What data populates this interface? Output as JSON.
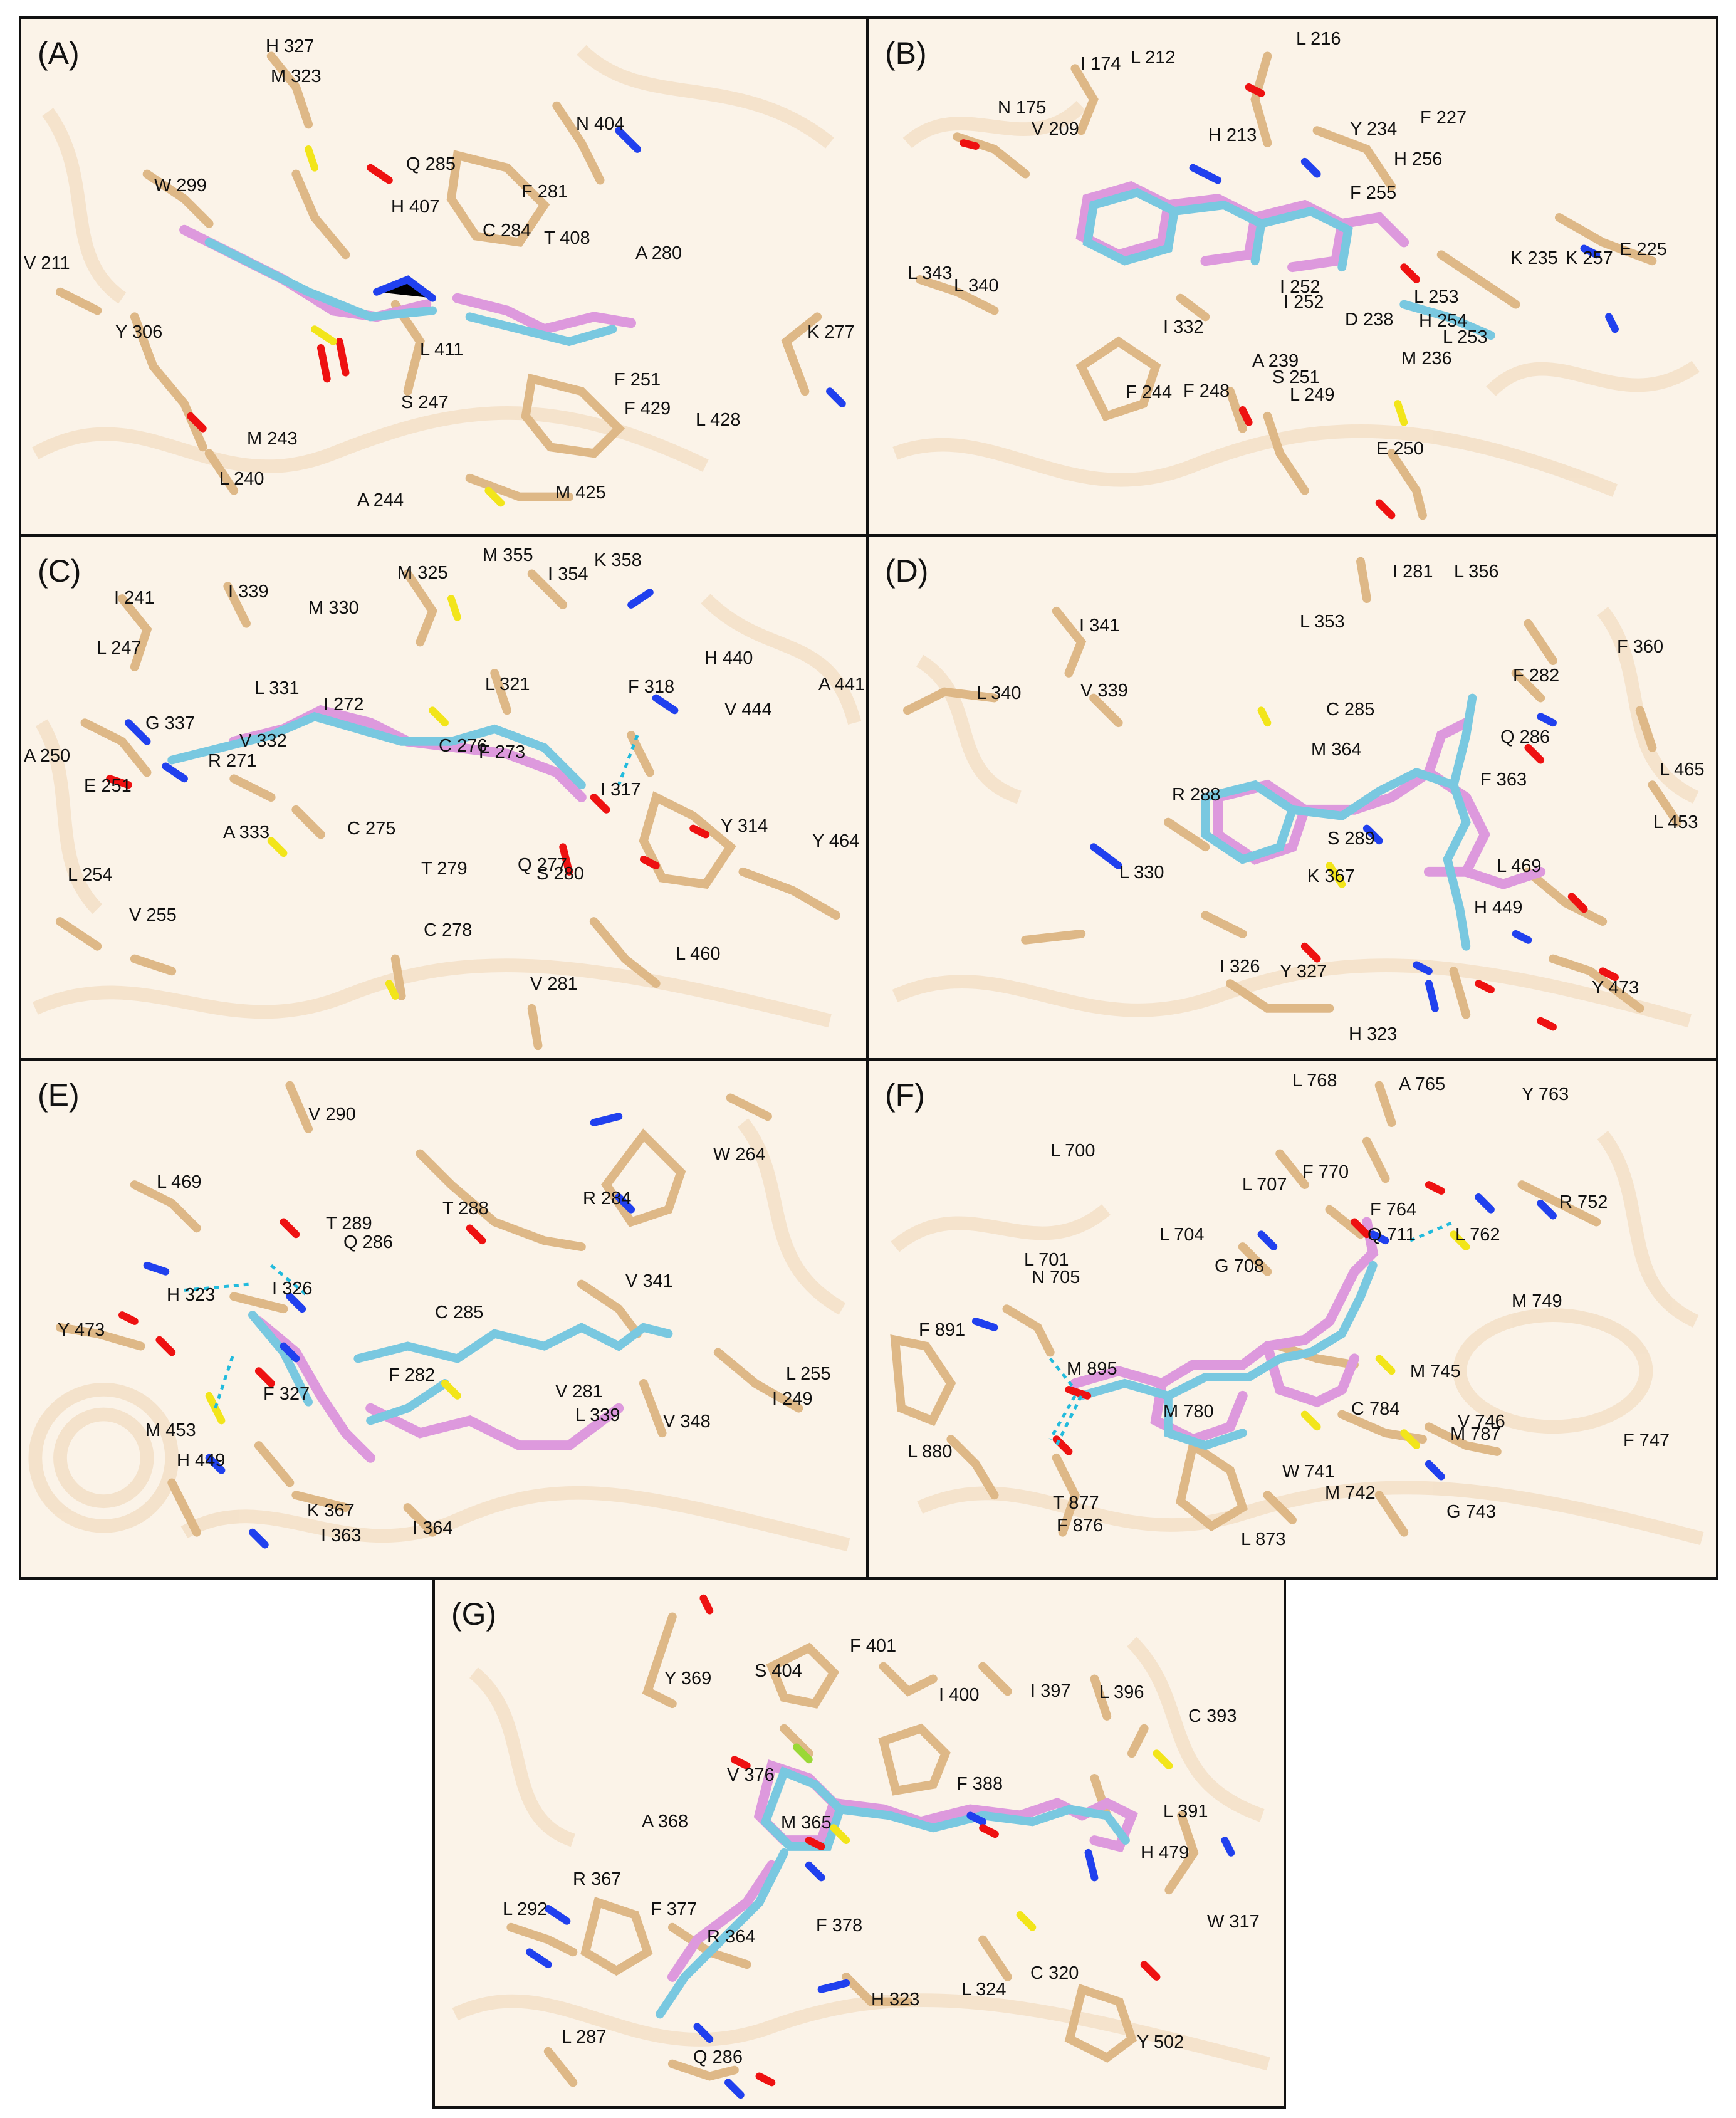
{
  "panels": [
    {
      "id": "A",
      "label": "(A)",
      "residues": [
        "H 327",
        "M 323",
        "N 404",
        "W 299",
        "Q 285",
        "F 281",
        "H 407",
        "C 284",
        "T 408",
        "A 280",
        "V 211",
        "Y 306",
        "K 277",
        "L 411",
        "S 247",
        "F 251",
        "F 429",
        "L 428",
        "M 243",
        "L 240",
        "A 244",
        "M 425"
      ]
    },
    {
      "id": "B",
      "label": "(B)",
      "residues": [
        "L 216",
        "I 174",
        "L 212",
        "N 175",
        "V 209",
        "F 227",
        "Y 234",
        "H 213",
        "H 256",
        "F 255",
        "K 235",
        "K 257",
        "E 225",
        "L 343",
        "L 340",
        "I 252",
        "I 252",
        "L 253",
        "I 332",
        "D 238",
        "H 254",
        "L 253",
        "A 239",
        "M 236",
        "S 251",
        "F 244",
        "F 248",
        "L 249",
        "E 250"
      ]
    },
    {
      "id": "C",
      "label": "(C)",
      "residues": [
        "M 355",
        "K 358",
        "I 241",
        "I 339",
        "M 325",
        "I 354",
        "M 330",
        "L 247",
        "H 440",
        "L 331",
        "I 272",
        "L 321",
        "F 318",
        "A 441",
        "G 337",
        "V 332",
        "V 444",
        "R 271",
        "F 273",
        "A 250",
        "C 276",
        "I 317",
        "E 251",
        "Y 314",
        "A 333",
        "C 275",
        "Y 464",
        "T 279",
        "Q 277",
        "S 280",
        "L 254",
        "V 255",
        "C 278",
        "L 460",
        "V 281"
      ]
    },
    {
      "id": "D",
      "label": "(D)",
      "residues": [
        "I 281",
        "L 356",
        "I 341",
        "L 353",
        "F 360",
        "L 340",
        "V 339",
        "F 282",
        "C 285",
        "M 364",
        "Q 286",
        "F 363",
        "L 465",
        "R 288",
        "S 289",
        "L 453",
        "L 330",
        "K 367",
        "L 469",
        "H 449",
        "I 326",
        "Y 327",
        "Y 473",
        "H 323"
      ]
    },
    {
      "id": "E",
      "label": "(E)",
      "residues": [
        "V 290",
        "W 264",
        "L 469",
        "T 289",
        "T 288",
        "R 284",
        "Q 286",
        "I 326",
        "V 341",
        "H 323",
        "Y 473",
        "C 285",
        "L 255",
        "F 282",
        "V 281",
        "F 327",
        "I 249",
        "L 339",
        "V 348",
        "M 453",
        "H 449",
        "K 367",
        "I 363",
        "I 364"
      ]
    },
    {
      "id": "F",
      "label": "(F)",
      "residues": [
        "L 768",
        "A 765",
        "Y 763",
        "L 700",
        "F 770",
        "L 707",
        "R 752",
        "F 764",
        "Q 711",
        "L 762",
        "L 704",
        "L 701",
        "G 708",
        "N 705",
        "M 749",
        "F 891",
        "M 895",
        "M 745",
        "M 780",
        "C 784",
        "V 746",
        "M 787",
        "L 880",
        "F 747",
        "W 741",
        "M 742",
        "T 877",
        "F 876",
        "G 743",
        "L 873"
      ]
    },
    {
      "id": "G",
      "label": "(G)",
      "residues": [
        "F 401",
        "Y 369",
        "S 404",
        "I 400",
        "I 397",
        "L 396",
        "C 393",
        "V 376",
        "F 388",
        "A 368",
        "M 365",
        "L 391",
        "H 479",
        "R 367",
        "L 292",
        "F 377",
        "W 317",
        "F 378",
        "R 364",
        "C 320",
        "H 323",
        "L 324",
        "L 287",
        "Q 286",
        "Y 502"
      ]
    }
  ],
  "colors": {
    "background": "#fbf3e8",
    "ribbon": "#f2dcc0",
    "residue_stick": "#deb887",
    "ligand_pink": "#dd99dd",
    "ligand_cyan": "#79c8e0",
    "nitrogen": "#2040ee",
    "oxygen": "#ee1111",
    "sulfur": "#f2e51a",
    "hbond": "#22bbdd"
  }
}
